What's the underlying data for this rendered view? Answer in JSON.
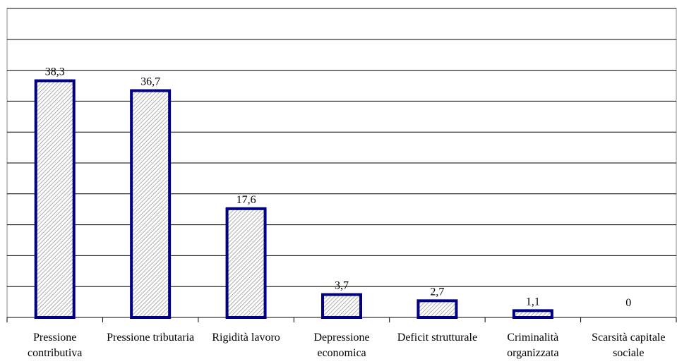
{
  "chart_data": {
    "type": "bar",
    "categories": [
      "Pressione contributiva",
      "Pressione tributaria",
      "Rigidità lavoro",
      "Depressione economica",
      "Deficit strutturale",
      "Criminalità organizzata",
      "Scarsità capitale sociale"
    ],
    "values": [
      38.3,
      36.7,
      17.6,
      3.7,
      2.7,
      1.1,
      0
    ],
    "value_labels": [
      "38,3",
      "36,7",
      "17,6",
      "3,7",
      "2,7",
      "1,1",
      "0"
    ],
    "color": "#000080",
    "ylim": [
      0,
      50
    ],
    "yticks": [
      0,
      5,
      10,
      15,
      20,
      25,
      30,
      35,
      40,
      45,
      50
    ],
    "grid": true
  }
}
